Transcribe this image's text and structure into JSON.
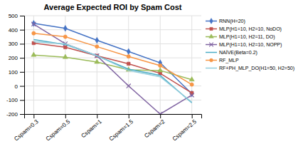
{
  "chart_data": {
    "type": "line",
    "title": "Average Expected ROI by Spam Cost",
    "categories": [
      "Cspam=0.3",
      "Cspam=0.5",
      "Cspam=1",
      "Cspam=1.5",
      "Cspam=2",
      "Cspam=2.5"
    ],
    "series": [
      {
        "name": "RNN(H=20)",
        "color": "#4472C4",
        "marker": "diamond",
        "values": [
          445,
          410,
          325,
          245,
          165,
          -55
        ]
      },
      {
        "name": "MLP(H1=10, H2=10, NoDO)",
        "color": "#C0504D",
        "marker": "square",
        "values": [
          305,
          275,
          215,
          158,
          90,
          -50
        ]
      },
      {
        "name": "MLP(H1=10, H2=11, DO)",
        "color": "#9BBB59",
        "marker": "triangle",
        "values": [
          220,
          205,
          170,
          115,
          110,
          45
        ]
      },
      {
        "name": "MLP(H1=10, H2=10, NOPP)",
        "color": "#8064A2",
        "marker": "x",
        "values": [
          440,
          300,
          215,
          0,
          -200,
          -65
        ]
      },
      {
        "name": "NAÏVE(Beta=0.2)",
        "color": "#4BACC6",
        "values": [
          330,
          295,
          215,
          120,
          75,
          -120
        ]
      },
      {
        "name": "RF_MLP",
        "color": "#F79646",
        "marker": "circle",
        "values": [
          375,
          350,
          280,
          210,
          145,
          10
        ]
      },
      {
        "name": "RF+PH_MLP_DO(H1=50, H2=50)",
        "color": "#92CDDC",
        "values": [
          315,
          300,
          215,
          110,
          65,
          -115
        ]
      }
    ],
    "ylim": [
      -200,
      500
    ],
    "yticks": [
      -200,
      -100,
      0,
      100,
      200,
      300,
      400,
      500
    ],
    "grid": true,
    "legend": "upper right"
  }
}
